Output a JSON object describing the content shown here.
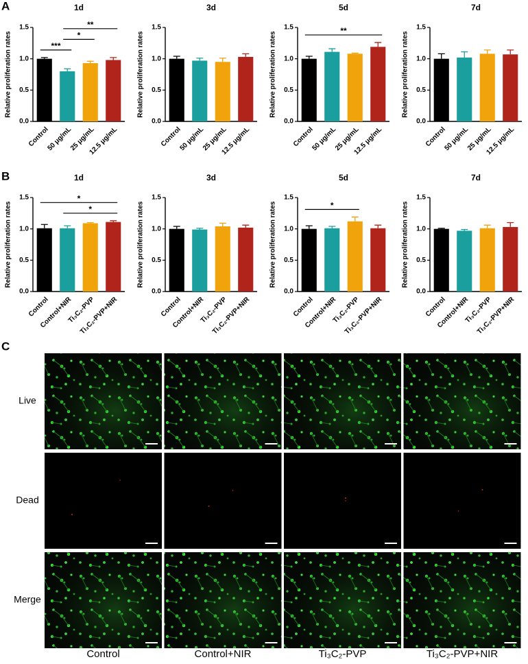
{
  "panel_labels": [
    "A",
    "B",
    "C"
  ],
  "chart_data": [
    {
      "type": "bar",
      "title": "1d",
      "y_label": "Relative proliferation rates",
      "categories": [
        "Control",
        "50 μg/mL",
        "25 μg/mL",
        "12.5 μg/mL"
      ],
      "values": [
        1.0,
        0.8,
        0.93,
        0.98
      ],
      "errors": [
        0.02,
        0.04,
        0.03,
        0.04
      ],
      "colors": [
        "#000000",
        "#1a9e9e",
        "#f0a30a",
        "#b0241c"
      ],
      "ylim": [
        0,
        1.5
      ],
      "yticks": [
        {
          "value": 0,
          "label": "0.0"
        },
        {
          "value": 0.5,
          "label": "0.5"
        },
        {
          "value": 1,
          "label": "1.0"
        },
        {
          "value": 1.5,
          "label": "1.5"
        }
      ],
      "significance": [
        {
          "pair": [
            "Control",
            "50 μg/mL"
          ],
          "label": "***"
        },
        {
          "pair": [
            "50 μg/mL",
            "25 μg/mL"
          ],
          "label": "*"
        },
        {
          "pair": [
            "50 μg/mL",
            "12.5 μg/mL"
          ],
          "label": "**"
        }
      ]
    },
    {
      "type": "bar",
      "title": "3d",
      "y_label": "Relative proliferation rates",
      "categories": [
        "Control",
        "50 μg/mL",
        "25 μg/mL",
        "12.5 μg/mL"
      ],
      "values": [
        1.0,
        0.97,
        0.95,
        1.03
      ],
      "errors": [
        0.04,
        0.04,
        0.06,
        0.05
      ],
      "colors": [
        "#000000",
        "#1a9e9e",
        "#f0a30a",
        "#b0241c"
      ],
      "ylim": [
        0,
        1.5
      ],
      "yticks": [
        {
          "value": 0,
          "label": "0.0"
        },
        {
          "value": 0.5,
          "label": "0.5"
        },
        {
          "value": 1,
          "label": "1.0"
        },
        {
          "value": 1.5,
          "label": "1.5"
        }
      ],
      "significance": []
    },
    {
      "type": "bar",
      "title": "5d",
      "y_label": "Relative proliferation rates",
      "categories": [
        "Control",
        "50 μg/mL",
        "25 μg/mL",
        "12.5 μg/mL"
      ],
      "values": [
        1.0,
        1.11,
        1.08,
        1.19
      ],
      "errors": [
        0.04,
        0.05,
        0.01,
        0.07
      ],
      "colors": [
        "#000000",
        "#1a9e9e",
        "#f0a30a",
        "#b0241c"
      ],
      "ylim": [
        0,
        1.5
      ],
      "yticks": [
        {
          "value": 0,
          "label": "0.0"
        },
        {
          "value": 0.5,
          "label": "0.5"
        },
        {
          "value": 1,
          "label": "1.0"
        },
        {
          "value": 1.5,
          "label": "1.5"
        }
      ],
      "significance": [
        {
          "pair": [
            "Control",
            "12.5 μg/mL"
          ],
          "label": "**"
        }
      ]
    },
    {
      "type": "bar",
      "title": "7d",
      "y_label": "Relative proliferation rates",
      "categories": [
        "Control",
        "50 μg/mL",
        "25 μg/mL",
        "12.5 μg/mL"
      ],
      "values": [
        1.0,
        1.02,
        1.08,
        1.07
      ],
      "errors": [
        0.08,
        0.09,
        0.06,
        0.07
      ],
      "colors": [
        "#000000",
        "#1a9e9e",
        "#f0a30a",
        "#b0241c"
      ],
      "ylim": [
        0,
        1.5
      ],
      "yticks": [
        {
          "value": 0,
          "label": "0.0"
        },
        {
          "value": 0.5,
          "label": "0.5"
        },
        {
          "value": 1,
          "label": "1.0"
        },
        {
          "value": 1.5,
          "label": "1.5"
        }
      ],
      "significance": []
    },
    {
      "type": "bar",
      "title": "1d",
      "y_label": "Relative proliferation rates",
      "categories": [
        "Control",
        "Control+NIR",
        "Ti₃C₂-PVP",
        "Ti₃C₂-PVP+NIR"
      ],
      "values": [
        1.01,
        1.01,
        1.09,
        1.11
      ],
      "errors": [
        0.06,
        0.04,
        0.01,
        0.02
      ],
      "colors": [
        "#000000",
        "#1a9e9e",
        "#f0a30a",
        "#b0241c"
      ],
      "ylim": [
        0,
        1.5
      ],
      "yticks": [
        {
          "value": 0,
          "label": "0.0"
        },
        {
          "value": 0.5,
          "label": "0.5"
        },
        {
          "value": 1,
          "label": "1.0"
        },
        {
          "value": 1.5,
          "label": "1.5"
        }
      ],
      "significance": [
        {
          "pair": [
            "Control+NIR",
            "Ti₃C₂-PVP+NIR"
          ],
          "label": "*"
        },
        {
          "pair": [
            "Control",
            "Ti₃C₂-PVP+NIR"
          ],
          "label": "*"
        }
      ]
    },
    {
      "type": "bar",
      "title": "3d",
      "y_label": "Relative proliferation rates",
      "categories": [
        "Control",
        "Control+NIR",
        "Ti₃C₂-PVP",
        "Ti₃C₂-PVP+NIR"
      ],
      "values": [
        1.0,
        0.99,
        1.04,
        1.02
      ],
      "errors": [
        0.04,
        0.02,
        0.05,
        0.04
      ],
      "colors": [
        "#000000",
        "#1a9e9e",
        "#f0a30a",
        "#b0241c"
      ],
      "ylim": [
        0,
        1.5
      ],
      "yticks": [
        {
          "value": 0,
          "label": "0.0"
        },
        {
          "value": 0.5,
          "label": "0.5"
        },
        {
          "value": 1,
          "label": "1.0"
        },
        {
          "value": 1.5,
          "label": "1.5"
        }
      ],
      "significance": []
    },
    {
      "type": "bar",
      "title": "5d",
      "y_label": "Relative proliferation rates",
      "categories": [
        "Control",
        "Control+NIR",
        "Ti₃C₂-PVP",
        "Ti₃C₂-PVP+NIR"
      ],
      "values": [
        1.0,
        1.01,
        1.12,
        1.01
      ],
      "errors": [
        0.05,
        0.03,
        0.07,
        0.05
      ],
      "colors": [
        "#000000",
        "#1a9e9e",
        "#f0a30a",
        "#b0241c"
      ],
      "ylim": [
        0,
        1.5
      ],
      "yticks": [
        {
          "value": 0,
          "label": "0.0"
        },
        {
          "value": 0.5,
          "label": "0.5"
        },
        {
          "value": 1,
          "label": "1.0"
        },
        {
          "value": 1.5,
          "label": "1.5"
        }
      ],
      "significance": [
        {
          "pair": [
            "Control",
            "Ti₃C₂-PVP"
          ],
          "label": "*"
        }
      ]
    },
    {
      "type": "bar",
      "title": "7d",
      "y_label": "Relative proliferation rates",
      "categories": [
        "Control",
        "Control+NIR",
        "Ti₃C₂-PVP",
        "Ti₃C₂-PVP+NIR"
      ],
      "values": [
        1.0,
        0.97,
        1.01,
        1.03
      ],
      "errors": [
        0.01,
        0.02,
        0.05,
        0.07
      ],
      "colors": [
        "#000000",
        "#1a9e9e",
        "#f0a30a",
        "#b0241c"
      ],
      "ylim": [
        0,
        1.5
      ],
      "yticks": [
        {
          "value": 0,
          "label": "0.0"
        },
        {
          "value": 0.5,
          "label": "0.5"
        },
        {
          "value": 1,
          "label": "1.0"
        },
        {
          "value": 1.5,
          "label": "1.5"
        }
      ],
      "significance": []
    }
  ],
  "images": {
    "rows": [
      "Live",
      "Dead",
      "Merge"
    ],
    "columns": [
      "Control",
      "Control+NIR",
      "Ti₃C₂-PVP",
      "Ti₃C₂-PVP+NIR"
    ]
  }
}
